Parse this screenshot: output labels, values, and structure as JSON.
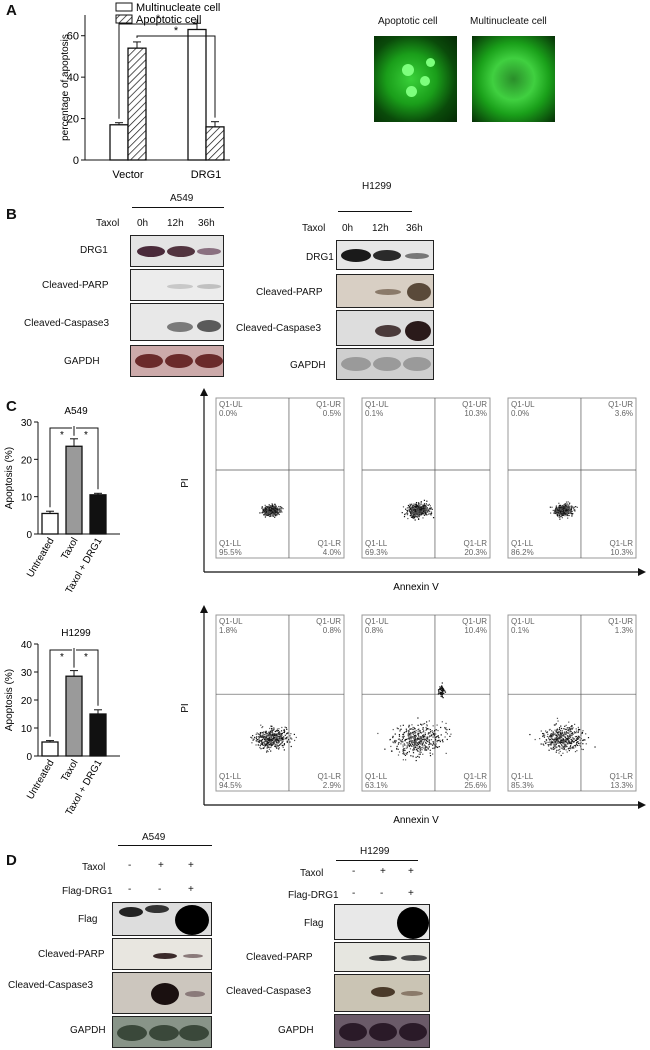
{
  "panels": {
    "A": {
      "label": "A",
      "micro_labels": [
        "Apoptotic cell",
        "Multinucleate cell"
      ]
    },
    "B": {
      "label": "B",
      "a549": {
        "title": "A549",
        "treatment": "Taxol",
        "times": [
          "0h",
          "12h",
          "36h"
        ],
        "rows": [
          "DRG1",
          "Cleaved-PARP",
          "Cleaved-Caspase3",
          "GAPDH"
        ]
      },
      "h1299": {
        "title": "H1299",
        "treatment": "Taxol",
        "times": [
          "0h",
          "12h",
          "36h"
        ],
        "rows": [
          "DRG1",
          "Cleaved-PARP",
          "Cleaved-Caspase3",
          "GAPDH"
        ]
      }
    },
    "C": {
      "label": "C",
      "flow_xlabel": "Annexin V",
      "flow_ylabel": "PI",
      "flow_top": [
        {
          "ul": "Q1-UL",
          "ulv": "0.0%",
          "ur": "Q1-UR",
          "urv": "0.5%",
          "ll": "Q1-LL",
          "llv": "95.5%",
          "lr": "Q1-LR",
          "lrv": "4.0%"
        },
        {
          "ul": "Q1-UL",
          "ulv": "0.1%",
          "ur": "Q1-UR",
          "urv": "10.3%",
          "ll": "Q1-LL",
          "llv": "69.3%",
          "lr": "Q1-LR",
          "lrv": "20.3%"
        },
        {
          "ul": "Q1-UL",
          "ulv": "0.0%",
          "ur": "Q1-UR",
          "urv": "3.6%",
          "ll": "Q1-LL",
          "llv": "86.2%",
          "lr": "Q1-LR",
          "lrv": "10.3%"
        }
      ],
      "flow_bottom": [
        {
          "ul": "Q1-UL",
          "ulv": "1.8%",
          "ur": "Q1-UR",
          "urv": "0.8%",
          "ll": "Q1-LL",
          "llv": "94.5%",
          "lr": "Q1-LR",
          "lrv": "2.9%"
        },
        {
          "ul": "Q1-UL",
          "ulv": "0.8%",
          "ur": "Q1-UR",
          "urv": "10.4%",
          "ll": "Q1-LL",
          "llv": "63.1%",
          "lr": "Q1-LR",
          "lrv": "25.6%"
        },
        {
          "ul": "Q1-UL",
          "ulv": "0.1%",
          "ur": "Q1-UR",
          "urv": "1.3%",
          "ll": "Q1-LL",
          "llv": "85.3%",
          "lr": "Q1-LR",
          "lrv": "13.3%"
        }
      ]
    },
    "D": {
      "label": "D",
      "a549": {
        "title": "A549",
        "row1": "Taxol",
        "row1_signs": [
          "-",
          "+",
          "+"
        ],
        "row2": "Flag-DRG1",
        "row2_signs": [
          "-",
          "-",
          "+"
        ],
        "rows": [
          "Flag",
          "Cleaved-PARP",
          "Cleaved-Caspase3",
          "GAPDH"
        ]
      },
      "h1299": {
        "title": "H1299",
        "row1": "Taxol",
        "row1_signs": [
          "-",
          "+",
          "+"
        ],
        "row2": "Flag-DRG1",
        "row2_signs": [
          "-",
          "-",
          "+"
        ],
        "rows": [
          "Flag",
          "Cleaved-PARP",
          "Cleaved-Caspase3",
          "GAPDH"
        ]
      }
    }
  },
  "chart_data": [
    {
      "type": "bar",
      "ylabel": "percentage of apoptosis",
      "categories": [
        "Vector",
        "DRG1"
      ],
      "series": [
        {
          "name": "Multinucleate cell",
          "values": [
            17,
            63
          ],
          "errors": [
            1,
            3
          ]
        },
        {
          "name": "Apoptotic cell",
          "values": [
            54,
            16
          ],
          "errors": [
            3,
            2.5
          ]
        }
      ],
      "ylim": [
        0,
        70
      ],
      "yticks": [
        0,
        20,
        40,
        60
      ],
      "significance": "*",
      "legend": "top"
    },
    {
      "type": "bar",
      "title": "A549",
      "ylabel": "Apoptosis (%)",
      "categories": [
        "Untreated",
        "Taxol",
        "Taxol + DRG1"
      ],
      "values": [
        5.5,
        23.5,
        10.5
      ],
      "errors": [
        0.6,
        2,
        0.4
      ],
      "ylim": [
        0,
        30
      ],
      "yticks": [
        0,
        10,
        20,
        30
      ],
      "significance": "*"
    },
    {
      "type": "bar",
      "title": "H1299",
      "ylabel": "Apoptosis (%)",
      "categories": [
        "Untreated",
        "Taxol",
        "Taxol + DRG1"
      ],
      "values": [
        5,
        28.5,
        15
      ],
      "errors": [
        0.5,
        2,
        1.5
      ],
      "ylim": [
        0,
        40
      ],
      "yticks": [
        0,
        10,
        20,
        30,
        40
      ],
      "significance": "*"
    }
  ]
}
